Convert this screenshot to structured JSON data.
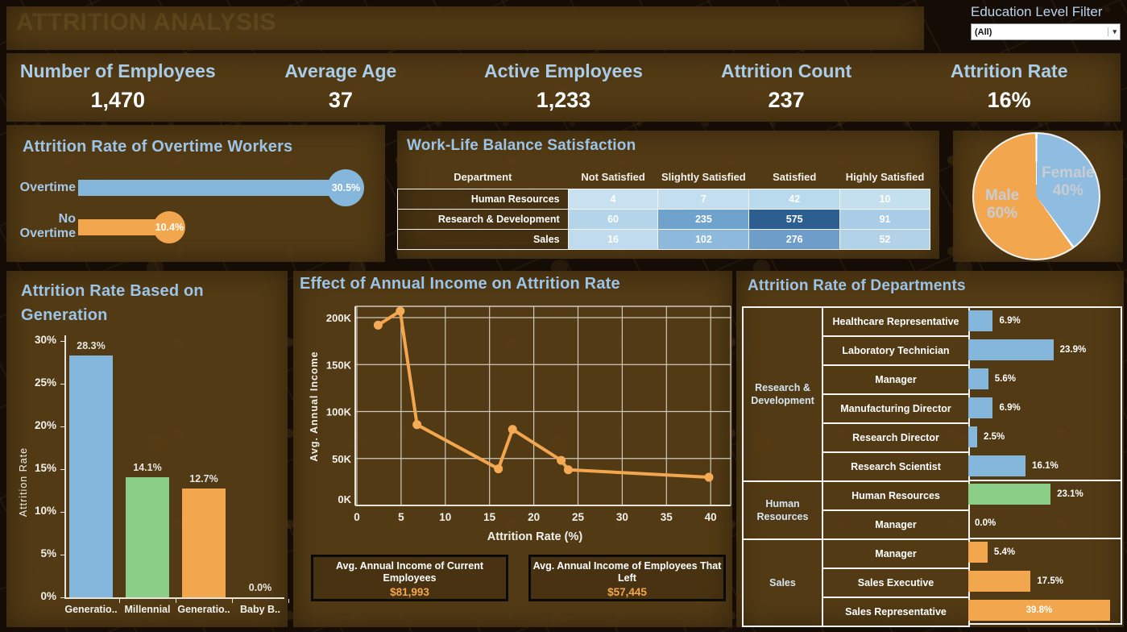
{
  "app": {
    "title": "ATTRITION ANALYSIS"
  },
  "filter": {
    "label": "Education Level Filter",
    "value": "(All)",
    "caret_icon": "dropdown-caret"
  },
  "kpis": [
    {
      "label": "Number of Employees",
      "value": "1,470"
    },
    {
      "label": "Average Age",
      "value": "37"
    },
    {
      "label": "Active Employees",
      "value": "1,233"
    },
    {
      "label": "Attrition Count",
      "value": "237"
    },
    {
      "label": "Attrition Rate",
      "value": "16%"
    }
  ],
  "colors": {
    "blue": "#85b6db",
    "orange": "#f2a64d",
    "green": "#8bce88",
    "gold": "#e9c766",
    "panel_title_blue": "#9cc4e6",
    "kpi_label_blue": "#a9cde9"
  },
  "chart_data": [
    {
      "id": "overtime",
      "type": "bar",
      "orientation": "horizontal",
      "title": "Attrition Rate of Overtime Workers",
      "categories": [
        "Overtime",
        "No Overtime"
      ],
      "values": [
        30.5,
        10.4
      ],
      "value_labels": [
        "30.5%",
        "10.4%"
      ],
      "bar_colors": [
        "#85b6db",
        "#f2a64d"
      ],
      "xlim": [
        0,
        33
      ],
      "unit": "%"
    },
    {
      "id": "worklife",
      "type": "heatmap",
      "title": "Work-Life Balance Satisfaction",
      "row_header": "Department",
      "columns": [
        "Not Satisfied",
        "Slightly Satisfied",
        "Satisfied",
        "Highly Satisfied"
      ],
      "rows": [
        {
          "name": "Human Resources",
          "values": [
            4,
            7,
            42,
            10
          ],
          "cell_colors": [
            "#c7e1f0",
            "#c3deee",
            "#b9d9ec",
            "#c4dfee"
          ]
        },
        {
          "name": "Research & Development",
          "values": [
            60,
            235,
            575,
            91
          ],
          "cell_colors": [
            "#b3d4e9",
            "#6fa3ce",
            "#2c5f90",
            "#a9cde6"
          ]
        },
        {
          "name": "Sales",
          "values": [
            16,
            102,
            276,
            52
          ],
          "cell_colors": [
            "#bfdbed",
            "#8db9dc",
            "#6d9dc8",
            "#b2d2e8"
          ]
        }
      ]
    },
    {
      "id": "gender",
      "type": "pie",
      "slices": [
        {
          "label": "Male",
          "value": 60,
          "pct_label": "60%",
          "color": "#f2a74f"
        },
        {
          "label": "Female",
          "value": 40,
          "pct_label": "40%",
          "color": "#8fbde2"
        }
      ],
      "unit": "%"
    },
    {
      "id": "generation",
      "type": "bar",
      "title": "Attrition Rate Based on Generation",
      "ylabel": "Attrition Rate",
      "categories": [
        "Generatio..",
        "Millennial",
        "Generatio..",
        "Baby B.."
      ],
      "values": [
        28.3,
        14.1,
        12.7,
        0.0
      ],
      "value_labels": [
        "28.3%",
        "14.1%",
        "12.7%",
        "0.0%"
      ],
      "bar_colors": [
        "#85b6db",
        "#8bce88",
        "#f2a64d",
        "#f2a64d"
      ],
      "yticks": [
        0,
        5,
        10,
        15,
        20,
        25,
        30
      ],
      "ytick_labels": [
        "0%",
        "5%",
        "10%",
        "15%",
        "20%",
        "25%",
        "30%"
      ],
      "ylim": [
        0,
        31.5
      ],
      "unit": "%"
    },
    {
      "id": "income",
      "type": "line",
      "title": "Effect of Annual Income on Attrition Rate",
      "xlabel": "Attrition Rate (%)",
      "ylabel": "Avg. Annual Income",
      "line_color": "#f2a64d",
      "points": [
        {
          "x": 2.4,
          "y_thousands": 192
        },
        {
          "x": 4.9,
          "y_thousands": 207
        },
        {
          "x": 6.8,
          "y_thousands": 86
        },
        {
          "x": 16.0,
          "y_thousands": 39
        },
        {
          "x": 17.6,
          "y_thousands": 81
        },
        {
          "x": 23.1,
          "y_thousands": 48
        },
        {
          "x": 23.9,
          "y_thousands": 38
        },
        {
          "x": 39.8,
          "y_thousands": 30
        }
      ],
      "xticks": [
        0,
        5,
        10,
        15,
        20,
        25,
        30,
        35,
        40
      ],
      "ytick_labels": [
        "0K",
        "50K",
        "100K",
        "150K",
        "200K"
      ],
      "yticks_thousands": [
        0,
        50,
        100,
        150,
        200
      ],
      "xlim": [
        -0.2,
        42.2
      ],
      "ylim_thousands": [
        0,
        212
      ],
      "grid": true
    },
    {
      "id": "departments",
      "type": "bar",
      "orientation": "horizontal",
      "title": "Attrition Rate of Departments",
      "xmax": 43.5,
      "unit": "%",
      "groups": [
        {
          "department": "Research & Development",
          "color": "#85b6db",
          "rows": [
            {
              "job": "Healthcare Representative",
              "value": 6.9,
              "label": "6.9%"
            },
            {
              "job": "Laboratory Technician",
              "value": 23.9,
              "label": "23.9%"
            },
            {
              "job": "Manager",
              "value": 5.6,
              "label": "5.6%"
            },
            {
              "job": "Manufacturing Director",
              "value": 6.9,
              "label": "6.9%"
            },
            {
              "job": "Research Director",
              "value": 2.5,
              "label": "2.5%"
            },
            {
              "job": "Research Scientist",
              "value": 16.1,
              "label": "16.1%"
            }
          ]
        },
        {
          "department": "Human Resources",
          "color": "#8bce88",
          "rows": [
            {
              "job": "Human Resources",
              "value": 23.1,
              "label": "23.1%"
            },
            {
              "job": "Manager",
              "value": 0.0,
              "label": "0.0%"
            }
          ]
        },
        {
          "department": "Sales",
          "color": "#f2a64d",
          "rows": [
            {
              "job": "Manager",
              "value": 5.4,
              "label": "5.4%"
            },
            {
              "job": "Sales Executive",
              "value": 17.5,
              "label": "17.5%"
            },
            {
              "job": "Sales Representative",
              "value": 39.8,
              "label": "39.8%",
              "label_inside": true
            }
          ]
        }
      ]
    }
  ],
  "callouts": [
    {
      "title": "Avg. Annual Income of Current Employees",
      "value": "$81,993"
    },
    {
      "title": "Avg. Annual Income of Employees That Left",
      "value": "$57,445"
    }
  ]
}
